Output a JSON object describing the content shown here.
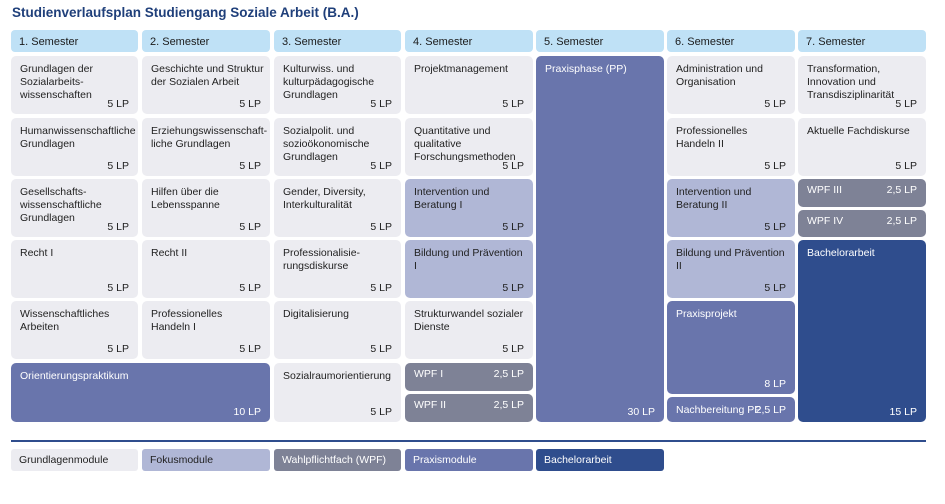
{
  "title": "Studienverlaufsplan Studiengang Soziale Arbeit (B.A.)",
  "semesters": [
    "1. Semester",
    "2. Semester",
    "3. Semester",
    "4. Semester",
    "5. Semester",
    "6. Semester",
    "7. Semester"
  ],
  "colors": {
    "header": "#bfe1f6",
    "grundlagen": "#ececf1",
    "fokus": "#b0b7d6",
    "wpf": "#7e8296",
    "praxis": "#6975ac",
    "bachelor": "#2f4d8d",
    "title": "#1f3f7a"
  },
  "modules": {
    "s1": [
      {
        "text": "Grundlagen der Sozialarbeits-wissenschaften",
        "lp": "5 LP"
      },
      {
        "text": "Humanwissenschaftliche Grundlagen",
        "lp": "5 LP"
      },
      {
        "text": "Gesellschafts-wissenschaftliche Grundlagen",
        "lp": "5 LP"
      },
      {
        "text": "Recht I",
        "lp": "5 LP"
      },
      {
        "text": "Wissenschaftliches Arbeiten",
        "lp": "5 LP"
      },
      {
        "text": "Orientierungspraktikum",
        "lp": "10 LP"
      }
    ],
    "s2": [
      {
        "text": "Geschichte und Struktur der Sozialen Arbeit",
        "lp": "5 LP"
      },
      {
        "text": "Erziehungswissenschaft-liche Grundlagen",
        "lp": "5 LP"
      },
      {
        "text": "Hilfen über die Lebensspanne",
        "lp": "5 LP"
      },
      {
        "text": "Recht II",
        "lp": "5 LP"
      },
      {
        "text": "Professionelles Handeln I",
        "lp": "5 LP"
      }
    ],
    "s3": [
      {
        "text": "Kulturwiss. und kulturpädagogische Grundlagen",
        "lp": "5 LP"
      },
      {
        "text": "Sozialpolit. und sozioökonomische Grundlagen",
        "lp": "5 LP"
      },
      {
        "text": "Gender, Diversity, Interkulturalität",
        "lp": "5 LP"
      },
      {
        "text": "Professionalisie-rungsdiskurse",
        "lp": "5 LP"
      },
      {
        "text": "Digitalisierung",
        "lp": "5 LP"
      },
      {
        "text": "Sozialraumorientierung",
        "lp": "5 LP"
      }
    ],
    "s4": [
      {
        "text": "Projektmanagement",
        "lp": "5 LP"
      },
      {
        "text": "Quantitative und qualitative Forschungsmethoden",
        "lp": "5 LP"
      },
      {
        "text": "Intervention und Beratung I",
        "lp": "5 LP"
      },
      {
        "text": "Bildung und Prävention I",
        "lp": "5 LP"
      },
      {
        "text": "Strukturwandel sozialer Dienste",
        "lp": "5 LP"
      },
      {
        "text": "WPF I",
        "lp": "2,5 LP"
      },
      {
        "text": "WPF II",
        "lp": "2,5 LP"
      }
    ],
    "s5": [
      {
        "text": "Praxisphase (PP)",
        "lp": "30 LP"
      }
    ],
    "s6": [
      {
        "text": "Administration und Organisation",
        "lp": "5 LP"
      },
      {
        "text": "Professionelles Handeln II",
        "lp": "5 LP"
      },
      {
        "text": "Intervention und Beratung II",
        "lp": "5 LP"
      },
      {
        "text": "Bildung und Prävention II",
        "lp": "5 LP"
      },
      {
        "text": "Praxisprojekt",
        "lp": "8 LP"
      },
      {
        "text": "Nachbereitung PP",
        "lp": "2,5 LP"
      }
    ],
    "s7": [
      {
        "text": "Transformation, Innovation und Transdisziplinarität",
        "lp": "5 LP"
      },
      {
        "text": "Aktuelle Fachdiskurse",
        "lp": "5 LP"
      },
      {
        "text": "WPF III",
        "lp": "2,5 LP"
      },
      {
        "text": "WPF IV",
        "lp": "2,5 LP"
      },
      {
        "text": "Bachelorarbeit",
        "lp": "15  LP"
      }
    ]
  },
  "legend": [
    "Grundlagenmodule",
    "Fokusmodule",
    "Wahlpflichtfach (WPF)",
    "Praxismodule",
    "Bachelorarbeit"
  ]
}
